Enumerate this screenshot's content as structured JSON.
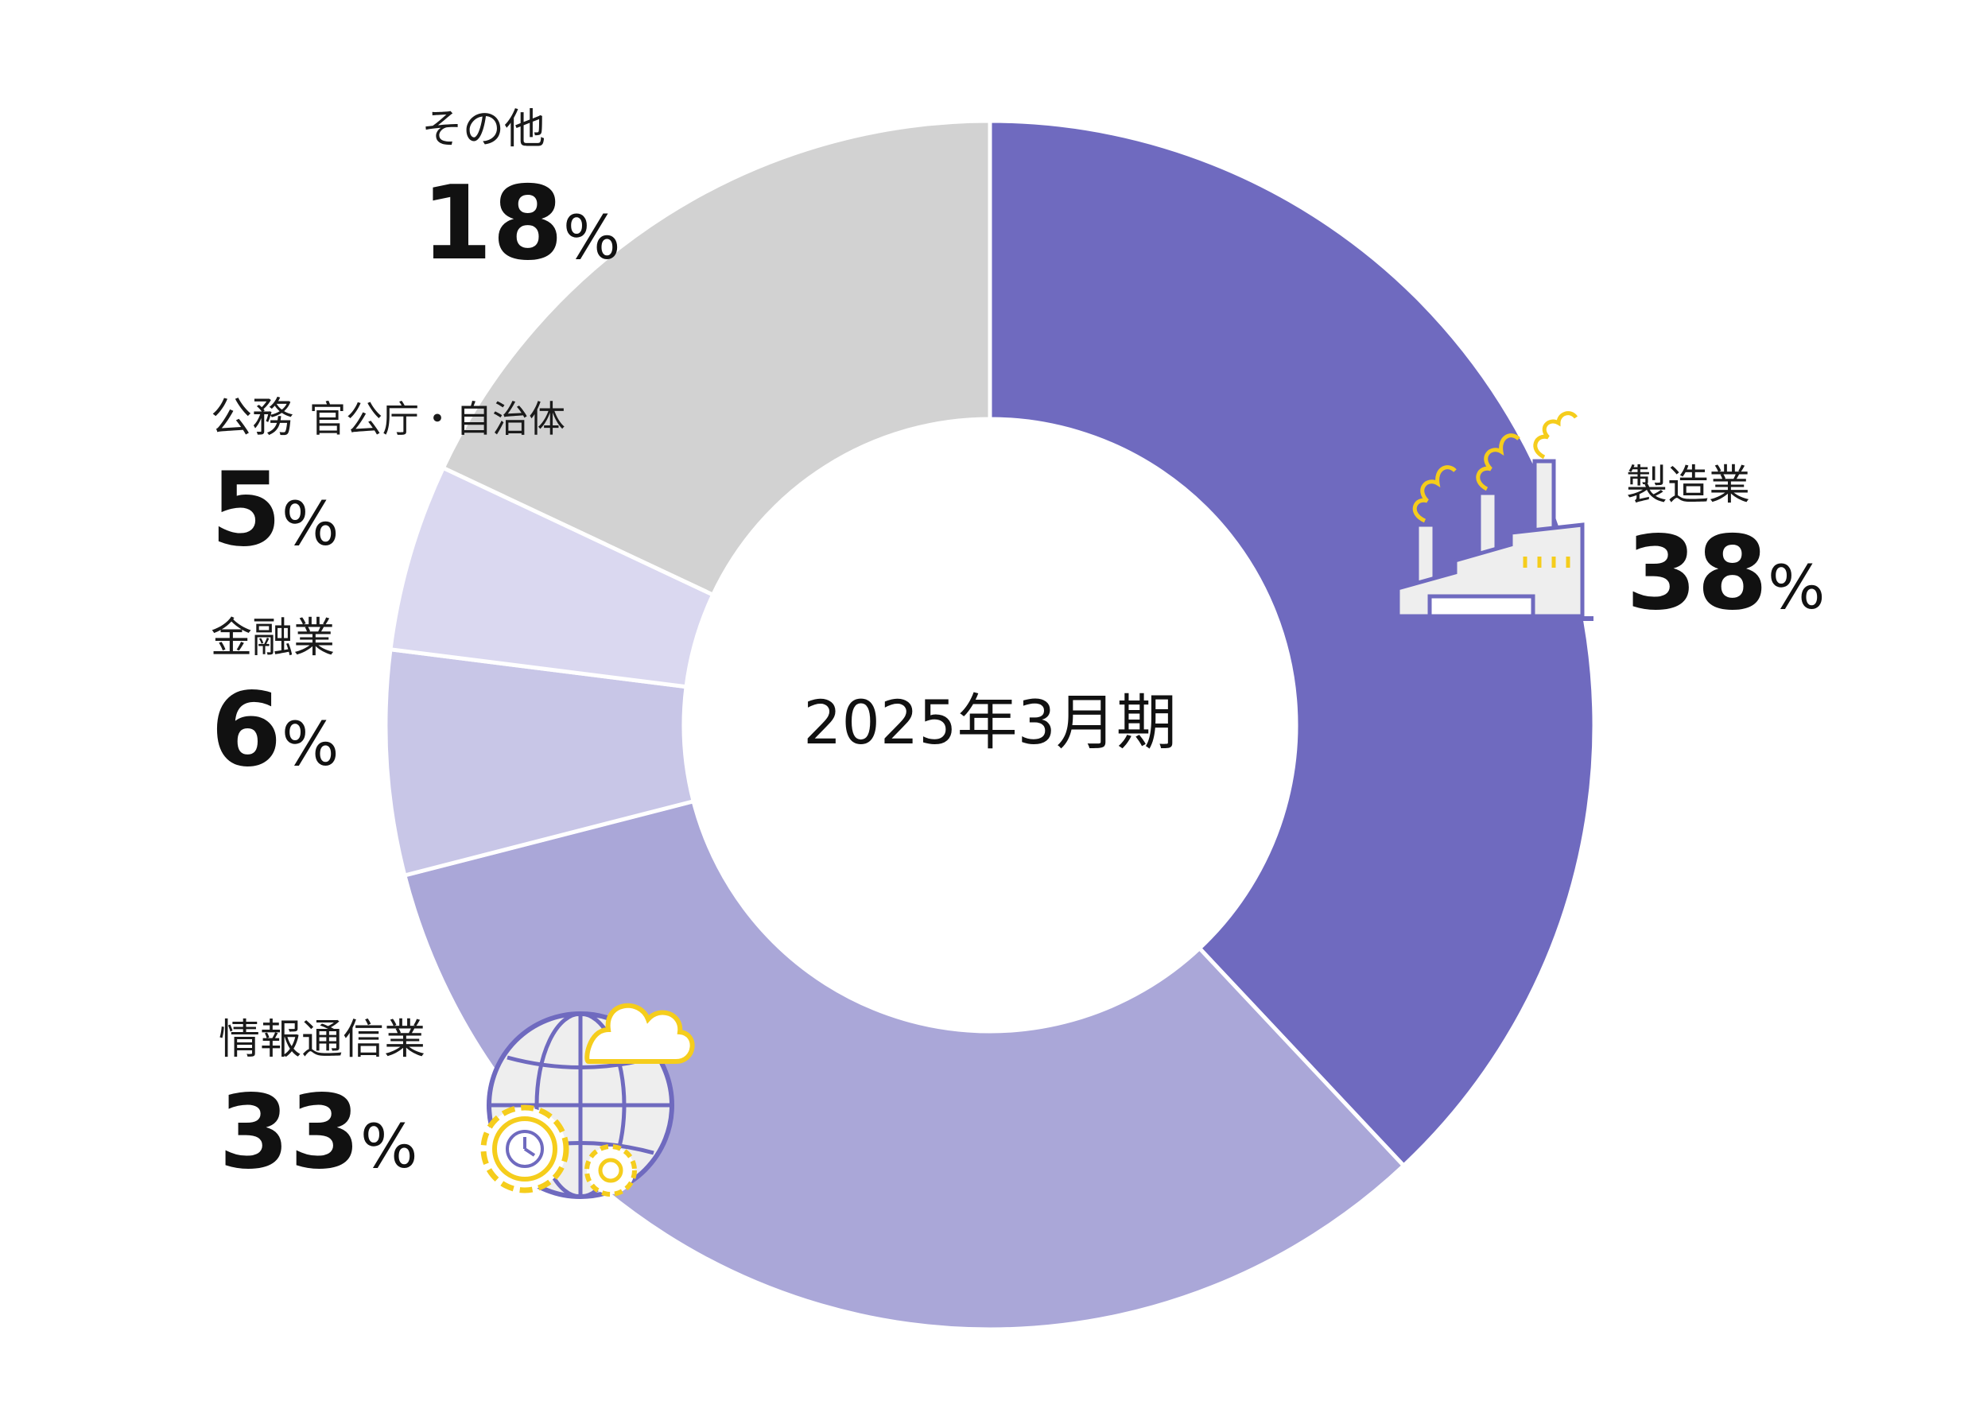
{
  "chart_data": {
    "type": "pie",
    "center_label": "2025年3月期",
    "unit": "%",
    "slices": [
      {
        "label": "製造業",
        "sublabel": "",
        "value": 38,
        "color": "#6f6abf",
        "icon": "factory-icon"
      },
      {
        "label": "情報通信業",
        "sublabel": "",
        "value": 33,
        "color": "#aaa7d8",
        "icon": "globe-cloud-gears-icon"
      },
      {
        "label": "金融業",
        "sublabel": "",
        "value": 6,
        "color": "#c8c6e7",
        "icon": ""
      },
      {
        "label": "公務",
        "sublabel": "官公庁・自治体",
        "value": 5,
        "color": "#dad8f0",
        "icon": ""
      },
      {
        "label": "その他",
        "sublabel": "",
        "value": 18,
        "color": "#d2d2d2",
        "icon": ""
      }
    ]
  },
  "icon_colors": {
    "outline": "#6f6abf",
    "accent": "#f5cd1c",
    "fill": "#eeeeee"
  }
}
